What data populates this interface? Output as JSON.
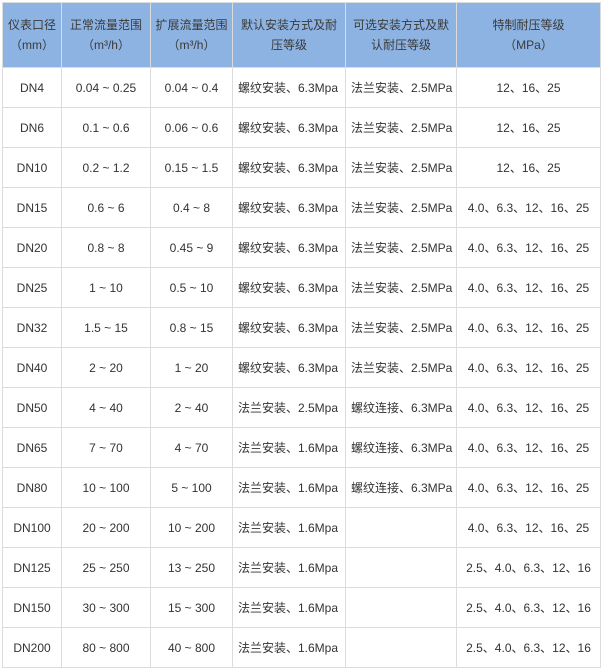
{
  "header": [
    {
      "line1": "仪表口径",
      "line2": "（mm）"
    },
    {
      "line1": "正常流量范围",
      "line2": "（m³/h）"
    },
    {
      "line1": "扩展流量范围",
      "line2": "（m³/h）"
    },
    {
      "line1": "默认安装方式及耐",
      "line2": "压等级"
    },
    {
      "line1": "可选安装方式及默",
      "line2": "认耐压等级"
    },
    {
      "line1": "特制耐压等级",
      "line2": "（MPa）"
    }
  ],
  "rows": [
    [
      "DN4",
      "0.04 ~ 0.25",
      "0.04 ~ 0.4",
      "螺纹安装、6.3Mpa",
      "法兰安装、2.5MPa",
      "12、16、25"
    ],
    [
      "DN6",
      "0.1 ~ 0.6",
      "0.06 ~ 0.6",
      "螺纹安装、6.3Mpa",
      "法兰安装、2.5MPa",
      "12、16、25"
    ],
    [
      "DN10",
      "0.2 ~ 1.2",
      "0.15 ~ 1.5",
      "螺纹安装、6.3Mpa",
      "法兰安装、2.5MPa",
      "12、16、25"
    ],
    [
      "DN15",
      "0.6 ~ 6",
      "0.4 ~ 8",
      "螺纹安装、6.3Mpa",
      "法兰安装、2.5MPa",
      "4.0、6.3、12、16、25"
    ],
    [
      "DN20",
      "0.8 ~ 8",
      "0.45 ~ 9",
      "螺纹安装、6.3Mpa",
      "法兰安装、2.5MPa",
      "4.0、6.3、12、16、25"
    ],
    [
      "DN25",
      "1 ~ 10",
      "0.5 ~ 10",
      "螺纹安装、6.3Mpa",
      "法兰安装、2.5MPa",
      "4.0、6.3、12、16、25"
    ],
    [
      "DN32",
      "1.5 ~ 15",
      "0.8 ~ 15",
      "螺纹安装、6.3Mpa",
      "法兰安装、2.5MPa",
      "4.0、6.3、12、16、25"
    ],
    [
      "DN40",
      "2 ~ 20",
      "1 ~ 20",
      "螺纹安装、6.3Mpa",
      "法兰安装、2.5MPa",
      "4.0、6.3、12、16、25"
    ],
    [
      "DN50",
      "4 ~ 40",
      "2 ~ 40",
      "法兰安装、2.5Mpa",
      "螺纹连接、6.3MPa",
      "4.0、6.3、12、16、25"
    ],
    [
      "DN65",
      "7 ~ 70",
      "4 ~ 70",
      "法兰安装、1.6Mpa",
      "螺纹连接、6.3MPa",
      "4.0、6.3、12、16、25"
    ],
    [
      "DN80",
      "10 ~ 100",
      "5 ~ 100",
      "法兰安装、1.6Mpa",
      "螺纹连接、6.3MPa",
      "4.0、6.3、12、16、25"
    ],
    [
      "DN100",
      "20 ~ 200",
      "10 ~ 200",
      "法兰安装、1.6Mpa",
      "",
      "4.0、6.3、12、16、25"
    ],
    [
      "DN125",
      "25 ~ 250",
      "13 ~ 250",
      "法兰安装、1.6Mpa",
      "",
      "2.5、4.0、6.3、12、16"
    ],
    [
      "DN150",
      "30 ~ 300",
      "15 ~ 300",
      "法兰安装、1.6Mpa",
      "",
      "2.5、4.0、6.3、12、16"
    ],
    [
      "DN200",
      "80 ~ 800",
      "40 ~ 800",
      "法兰安装、1.6Mpa",
      "",
      "2.5、4.0、6.3、12、16"
    ]
  ],
  "colors": {
    "header_bg": "#8db3e2",
    "border": "#dcdcdc",
    "text": "#333333"
  }
}
